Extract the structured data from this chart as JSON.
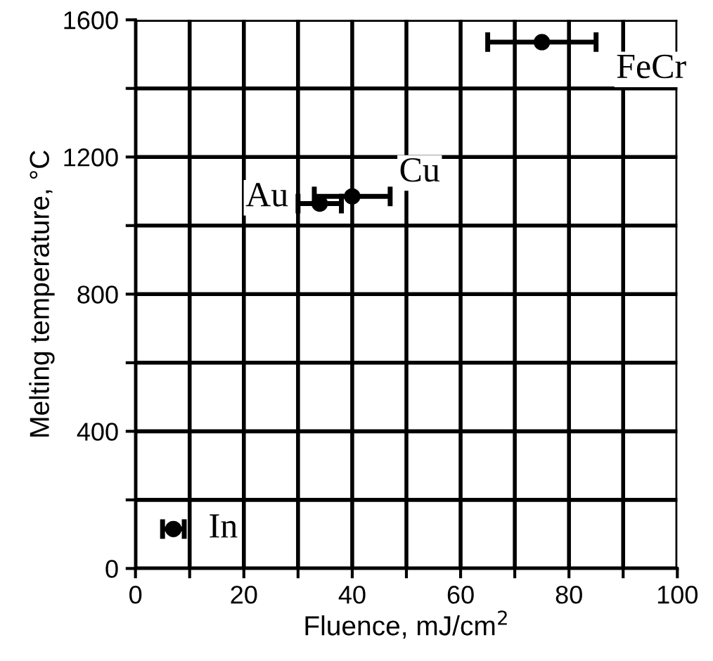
{
  "chart_data": {
    "type": "scatter",
    "xlabel": "Fluence, mJ/cm$^{2}$",
    "ylabel": "Melting temperature, °C",
    "series": [
      {
        "color": "#000000",
        "x": [
          7,
          34,
          40,
          75
        ],
        "values": [
          115,
          1064,
          1085,
          1535
        ],
        "xerrors": [
          2,
          4,
          7,
          10
        ]
      }
    ],
    "annotations": [
      {
        "text": "In",
        "x": 7,
        "y": 115
      },
      {
        "text": "Au",
        "x": 34,
        "y": 1064
      },
      {
        "text": "Cu",
        "x": 40,
        "y": 1085
      },
      {
        "text": "FeCr",
        "x": 75,
        "y": 1535
      }
    ],
    "xlim": [
      0,
      100
    ],
    "ylim": [
      0,
      1600
    ],
    "xticks": [
      0,
      {
        "value": 10,
        "label": null
      },
      20,
      {
        "value": 30,
        "label": null
      },
      40,
      {
        "value": 50,
        "label": null
      },
      60,
      {
        "value": 70,
        "label": null
      },
      80,
      {
        "value": 90,
        "label": null
      },
      100
    ],
    "yticks": [
      0,
      {
        "value": 200,
        "label": null
      },
      400,
      {
        "value": 600,
        "label": null
      },
      800,
      {
        "value": 1000,
        "label": null
      },
      1200,
      {
        "value": 1400,
        "label": null
      },
      1600
    ],
    "grid": true,
    "marker": "circle",
    "legend": false
  }
}
